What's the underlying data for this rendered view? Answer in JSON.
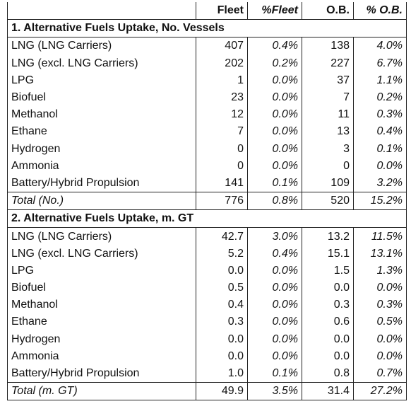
{
  "header": {
    "columns": [
      "Fleet",
      "%Fleet",
      "O.B.",
      "% O.B."
    ]
  },
  "sections": [
    {
      "title": "1. Alternative Fuels Uptake, No. Vessels",
      "rows": [
        [
          "LNG (LNG Carriers)",
          "407",
          "0.4%",
          "138",
          "4.0%"
        ],
        [
          "LNG (excl. LNG Carriers)",
          "202",
          "0.2%",
          "227",
          "6.7%"
        ],
        [
          "LPG",
          "1",
          "0.0%",
          "37",
          "1.1%"
        ],
        [
          "Biofuel",
          "23",
          "0.0%",
          "7",
          "0.2%"
        ],
        [
          "Methanol",
          "12",
          "0.0%",
          "11",
          "0.3%"
        ],
        [
          "Ethane",
          "7",
          "0.0%",
          "13",
          "0.4%"
        ],
        [
          "Hydrogen",
          "0",
          "0.0%",
          "3",
          "0.1%"
        ],
        [
          "Ammonia",
          "0",
          "0.0%",
          "0",
          "0.0%"
        ],
        [
          "Battery/Hybrid Propulsion",
          "141",
          "0.1%",
          "109",
          "3.2%"
        ]
      ],
      "total": [
        "Total (No.)",
        "776",
        "0.8%",
        "520",
        "15.2%"
      ]
    },
    {
      "title": "2. Alternative Fuels Uptake, m. GT",
      "rows": [
        [
          "LNG (LNG Carriers)",
          "42.7",
          "3.0%",
          "13.2",
          "11.5%"
        ],
        [
          "LNG (excl. LNG Carriers)",
          "5.2",
          "0.4%",
          "15.1",
          "13.1%"
        ],
        [
          "LPG",
          "0.0",
          "0.0%",
          "1.5",
          "1.3%"
        ],
        [
          "Biofuel",
          "0.5",
          "0.0%",
          "0.0",
          "0.0%"
        ],
        [
          "Methanol",
          "0.4",
          "0.0%",
          "0.3",
          "0.3%"
        ],
        [
          "Ethane",
          "0.3",
          "0.0%",
          "0.6",
          "0.5%"
        ],
        [
          "Hydrogen",
          "0.0",
          "0.0%",
          "0.0",
          "0.0%"
        ],
        [
          "Ammonia",
          "0.0",
          "0.0%",
          "0.0",
          "0.0%"
        ],
        [
          "Battery/Hybrid Propulsion",
          "1.0",
          "0.1%",
          "0.8",
          "0.7%"
        ]
      ],
      "total": [
        "Total (m. GT)",
        "49.9",
        "3.5%",
        "31.4",
        "27.2%"
      ]
    }
  ]
}
